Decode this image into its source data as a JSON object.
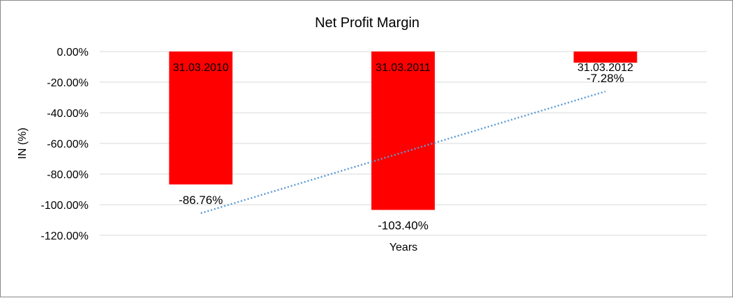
{
  "chart_data": {
    "type": "bar",
    "title": "Net Profit Margin",
    "xlabel": "Years",
    "ylabel": "IN (%)",
    "categories": [
      "31.03.2010",
      "31.03.2011",
      "31.03.2012"
    ],
    "values": [
      -86.76,
      -103.4,
      -7.28
    ],
    "data_labels": [
      "-86.76%",
      "-103.40%",
      "-7.28%"
    ],
    "y_ticks": [
      0,
      -20,
      -40,
      -60,
      -80,
      -100,
      -120
    ],
    "y_tick_labels": [
      "0.00%",
      "-20.00%",
      "-40.00%",
      "-60.00%",
      "-80.00%",
      "-100.00%",
      "-120.00%"
    ],
    "ylim": [
      -120,
      0
    ],
    "grid": true,
    "legend": "none",
    "trendline": {
      "type": "linear",
      "style": "dotted"
    },
    "colors": {
      "bar": "#ff0000",
      "trendline": "#5b9bd5",
      "grid": "#d9d9d9",
      "border": "#8a8a8a"
    }
  }
}
